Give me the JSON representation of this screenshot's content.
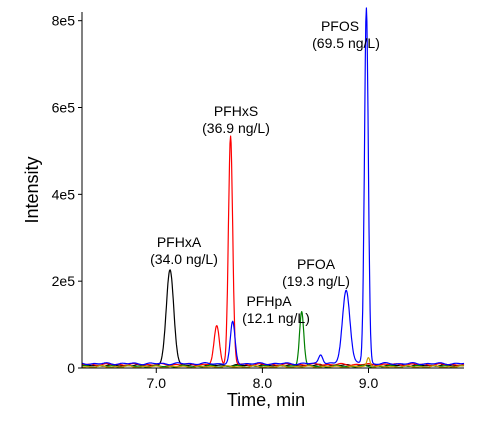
{
  "chart_data": {
    "type": "line",
    "xlabel": "Time, min",
    "ylabel": "Intensity",
    "xlim": [
      6.3,
      9.9
    ],
    "ylim": [
      0,
      820000
    ],
    "x_ticks": [
      7.0,
      8.0,
      9.0
    ],
    "x_tick_labels": [
      "7.0",
      "8.0",
      "9.0"
    ],
    "y_ticks": [
      0,
      200000,
      400000,
      600000,
      800000
    ],
    "y_tick_labels": [
      "0",
      "2e5",
      "4e5",
      "6e5",
      "8e5"
    ],
    "grid": false,
    "series": [
      {
        "color": "#000000",
        "baseline": 6000,
        "peaks": [
          {
            "x": 7.13,
            "y": 220000,
            "w": 0.035
          }
        ]
      },
      {
        "color": "#ff0000",
        "baseline": 8000,
        "peaks": [
          {
            "x": 7.57,
            "y": 88000,
            "w": 0.025
          },
          {
            "x": 7.7,
            "y": 525000,
            "w": 0.02
          }
        ]
      },
      {
        "color": "#007f00",
        "baseline": 4000,
        "peaks": [
          {
            "x": 8.37,
            "y": 128000,
            "w": 0.02
          }
        ]
      },
      {
        "color": "#0000ff",
        "baseline": 10000,
        "peaks": [
          {
            "x": 7.72,
            "y": 95000,
            "w": 0.022
          },
          {
            "x": 8.55,
            "y": 22000,
            "w": 0.02
          },
          {
            "x": 8.79,
            "y": 170000,
            "w": 0.035
          },
          {
            "x": 8.98,
            "y": 820000,
            "w": 0.018
          }
        ]
      },
      {
        "color": "#c8a000",
        "baseline": 3000,
        "peaks": [
          {
            "x": 9.0,
            "y": 22000,
            "w": 0.015
          }
        ]
      }
    ],
    "annotations": [
      {
        "name": "PFHxA",
        "conc": "(34.0 ng/L)"
      },
      {
        "name": "PFHxS",
        "conc": "(36.9 ng/L)"
      },
      {
        "name": "PFHpA",
        "conc": "(12.1 ng/L)"
      },
      {
        "name": "PFOA",
        "conc": "(19.3 ng/L)"
      },
      {
        "name": "PFOS",
        "conc": "(69.5 ng/L)"
      }
    ]
  }
}
